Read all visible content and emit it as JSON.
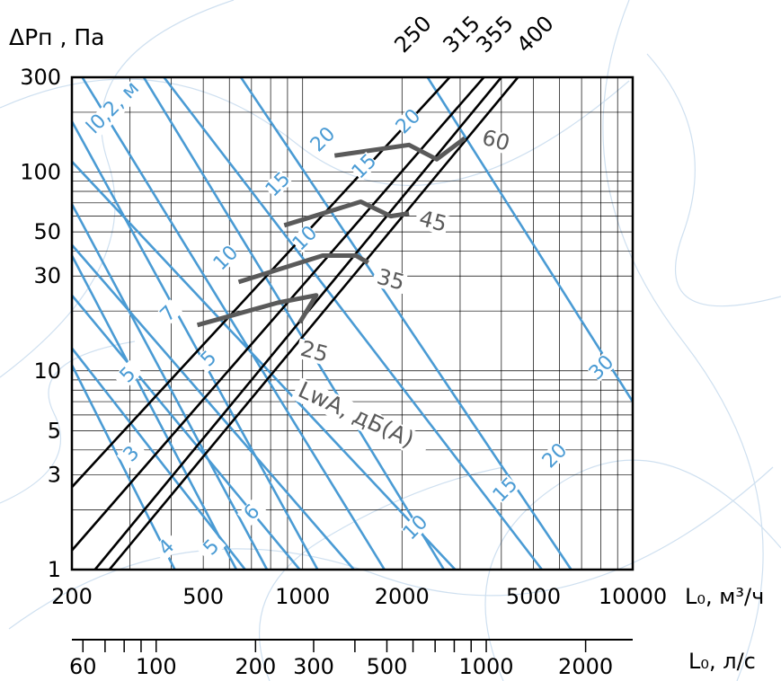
{
  "chart_data": {
    "type": "line",
    "scale": "log-log",
    "xlabel": "L₀, м³/ч",
    "ylabel": "ΔPп , Па",
    "xlabel2": "L₀, л/с",
    "xlim": [
      200,
      10000
    ],
    "ylim": [
      1,
      300
    ],
    "x_ticks": [
      "200",
      "500",
      "1000",
      "2000",
      "5000",
      "10000"
    ],
    "y_ticks": [
      "1",
      "3",
      "5",
      "10",
      "30",
      "50",
      "100",
      "300"
    ],
    "x2_ticks": [
      "60",
      "100",
      "200",
      "300",
      "500",
      "1000",
      "2000"
    ],
    "grid": true,
    "colors": {
      "performance": "#000000",
      "throw": "#4a9bd4",
      "noise": "#5a5a5a",
      "background": "#cfe0f0"
    },
    "performance_lines": [
      {
        "name": "250",
        "points": [
          [
            200,
            2.6
          ],
          [
            2790,
            300
          ]
        ]
      },
      {
        "name": "315",
        "points": [
          [
            200,
            1.25
          ],
          [
            3540,
            300
          ]
        ]
      },
      {
        "name": "355",
        "points": [
          [
            235,
            1
          ],
          [
            4000,
            300
          ]
        ]
      },
      {
        "name": "400",
        "points": [
          [
            260,
            1
          ],
          [
            4490,
            300
          ]
        ]
      }
    ],
    "throw_label": "l0,2, м",
    "throw_lines": [
      {
        "label": "20",
        "points": [
          [
            330,
            300
          ],
          [
            2680,
            1
          ]
        ]
      },
      {
        "label": "15",
        "points": [
          [
            215,
            300
          ],
          [
            1770,
            1
          ]
        ]
      },
      {
        "label": "10",
        "points": [
          [
            200,
            180
          ],
          [
            1110,
            1
          ]
        ]
      },
      {
        "label": "7",
        "points": [
          [
            200,
            69
          ],
          [
            780,
            1
          ]
        ]
      },
      {
        "label": "5",
        "points": [
          [
            200,
            38
          ],
          [
            630,
            1
          ]
        ]
      },
      {
        "label": "3",
        "points": [
          [
            200,
            10.7
          ],
          [
            410,
            1
          ]
        ]
      },
      {
        "label": "30",
        "points": [
          [
            2390,
            300
          ],
          [
            10000,
            7
          ]
        ]
      },
      {
        "label": "20",
        "points": [
          [
            650,
            300
          ],
          [
            6510,
            1
          ]
        ]
      },
      {
        "label": "15",
        "points": [
          [
            380,
            300
          ],
          [
            5310,
            1
          ]
        ]
      },
      {
        "label": "10",
        "points": [
          [
            200,
            113
          ],
          [
            2900,
            1
          ]
        ]
      },
      {
        "label": "6",
        "points": [
          [
            200,
            43
          ],
          [
            1430,
            1
          ]
        ]
      },
      {
        "label": "5",
        "points": [
          [
            200,
            24
          ],
          [
            980,
            1
          ]
        ]
      },
      {
        "label": "4",
        "points": [
          [
            200,
            13
          ],
          [
            670,
            1
          ]
        ]
      }
    ],
    "noise_label": "LwA, дБ(А)",
    "noise_lines": [
      {
        "label": "60",
        "points": [
          [
            1250,
            121
          ],
          [
            2100,
            137
          ],
          [
            2550,
            116
          ],
          [
            3100,
            148
          ]
        ]
      },
      {
        "label": "45",
        "points": [
          [
            880,
            54
          ],
          [
            1500,
            71
          ],
          [
            1850,
            60
          ],
          [
            2100,
            62
          ]
        ]
      },
      {
        "label": "35",
        "points": [
          [
            640,
            28
          ],
          [
            1150,
            38
          ],
          [
            1450,
            38
          ],
          [
            1580,
            35
          ]
        ]
      },
      {
        "label": "25",
        "points": [
          [
            480,
            17
          ],
          [
            840,
            22
          ],
          [
            1100,
            24
          ],
          [
            980,
            17.5
          ]
        ]
      }
    ]
  }
}
